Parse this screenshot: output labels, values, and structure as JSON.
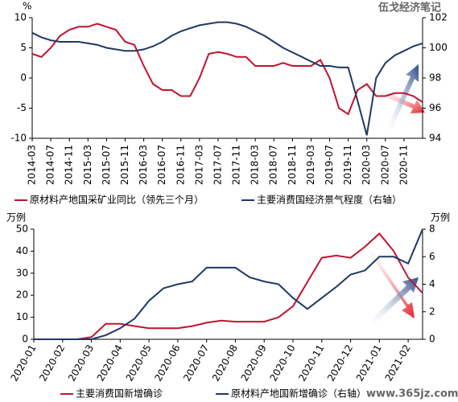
{
  "watermarks": [
    "伍戈经济笔记",
    "www.365jz.com"
  ],
  "chart_data": [
    {
      "type": "line",
      "ylabel": "%",
      "categories": [
        "2014-03",
        null,
        "2014-07",
        null,
        "2014-11",
        null,
        "2015-03",
        null,
        "2015-07",
        null,
        "2015-11",
        null,
        "2016-03",
        null,
        "2016-07",
        null,
        "2016-11",
        null,
        "2017-03",
        null,
        "2017-07",
        null,
        "2017-11",
        null,
        "2018-03",
        null,
        "2018-07",
        null,
        "2018-11",
        null,
        "2019-03",
        null,
        "2019-07",
        null,
        "2019-11",
        null,
        "2020-03",
        null,
        "2020-07",
        null,
        "2020-11",
        null,
        null
      ],
      "ylim": [
        -10,
        10
      ],
      "yticks": [
        -10,
        -5,
        0,
        5,
        10
      ],
      "y2lim": [
        94,
        102
      ],
      "y2ticks": [
        94,
        96,
        98,
        100,
        102
      ],
      "series": [
        {
          "name": "原材料产地国采矿业同比（领先三个月）",
          "color": "#c0152f",
          "values": [
            4,
            3.5,
            5,
            7,
            8,
            8.5,
            8.5,
            9,
            8.5,
            8,
            6,
            5.5,
            2,
            -1,
            -2,
            -2,
            -3,
            -3,
            0,
            4,
            4.3,
            4,
            3.5,
            3.5,
            2,
            2,
            2,
            2.5,
            2,
            2,
            2,
            3,
            0,
            -5,
            -6,
            -2,
            -1,
            -3,
            -3,
            -2.5,
            -2.5,
            -3,
            -4
          ]
        },
        {
          "name": "主要消费国经济景气程度（右轴）",
          "color": "#1f3864",
          "axis": "y2",
          "values": [
            101,
            100.7,
            100.5,
            100.4,
            100.4,
            100.4,
            100.3,
            100.2,
            100,
            99.9,
            99.8,
            99.8,
            99.9,
            100.1,
            100.4,
            100.8,
            101.1,
            101.3,
            101.5,
            101.6,
            101.7,
            101.7,
            101.6,
            101.4,
            101.1,
            100.8,
            100.4,
            100,
            99.7,
            99.4,
            99.1,
            98.8,
            98.8,
            98.7,
            98.7,
            96.5,
            94.2,
            98,
            99,
            99.5,
            99.8,
            100.1,
            100.3
          ]
        }
      ]
    },
    {
      "type": "line",
      "ylabel": "万例",
      "y2label": "万例",
      "categories": [
        "2020-01",
        null,
        "2020-02",
        null,
        "2020-03",
        null,
        "2020-04",
        null,
        "2020-05",
        null,
        "2020-06",
        null,
        "2020-07",
        null,
        "2020-08",
        null,
        "2020-09",
        null,
        "2020-10",
        null,
        "2020-11",
        null,
        "2020-12",
        null,
        "2021-01",
        null,
        "2021-02",
        null
      ],
      "ylim": [
        0,
        50
      ],
      "yticks": [
        0,
        10,
        20,
        30,
        40,
        50
      ],
      "y2lim": [
        0,
        8
      ],
      "y2ticks": [
        0,
        2,
        4,
        6,
        8
      ],
      "series": [
        {
          "name": "主要消费国新增确诊",
          "color": "#c0152f",
          "values": [
            0,
            0,
            0,
            0,
            1,
            7,
            7,
            6,
            5,
            5,
            5,
            6,
            7.5,
            8.5,
            8,
            8,
            8,
            10,
            15,
            26,
            37,
            38,
            37,
            42,
            48,
            40,
            28,
            21
          ]
        },
        {
          "name": "原材料产地国新增确诊（右轴）",
          "color": "#1f3864",
          "axis": "y2",
          "values": [
            0,
            0,
            0,
            0,
            0,
            0.3,
            0.8,
            1.5,
            2.8,
            3.7,
            4,
            4.2,
            5.2,
            5.2,
            5.2,
            4.5,
            4.2,
            4,
            3,
            2.2,
            3,
            3.8,
            4.7,
            5,
            6,
            6,
            5.5,
            8
          ]
        }
      ]
    }
  ]
}
